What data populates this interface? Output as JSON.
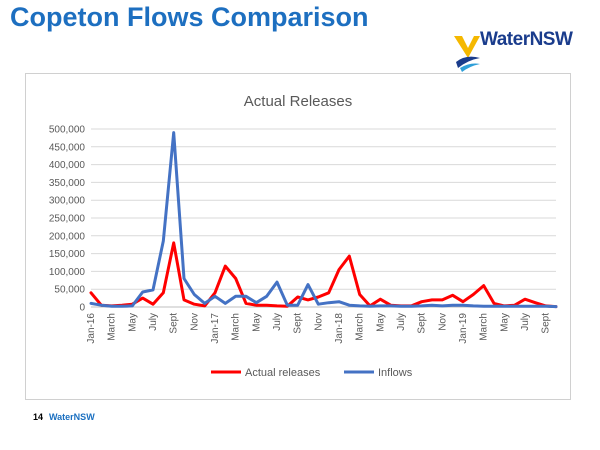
{
  "slide": {
    "title": "Copeton Flows Comparison",
    "logo_text": "WaterNSW",
    "page_number": "14",
    "footer_brand": "WaterNSW"
  },
  "colors": {
    "title": "#1d6fc0",
    "actual": "#ff0000",
    "inflows": "#4472c4",
    "grid": "#d9d9d9",
    "logo_yellow": "#f5b800",
    "logo_blue": "#1a3c8c",
    "logo_light": "#2f9fd8"
  },
  "chart_data": {
    "type": "line",
    "title": "Actual Releases",
    "xlabel": "",
    "ylabel": "",
    "ylim": [
      0,
      500000
    ],
    "yticks": [
      "0",
      "50,000",
      "100,000",
      "150,000",
      "200,000",
      "250,000",
      "300,000",
      "350,000",
      "400,000",
      "450,000",
      "500,000"
    ],
    "grid": true,
    "legend": "bottom",
    "categories": [
      "Jan-16",
      "Feb-16",
      "March",
      "Apr-16",
      "May",
      "Jun-16",
      "July",
      "Aug-16",
      "Sept",
      "Oct-16",
      "Nov",
      "Dec-16",
      "Jan-17",
      "Feb-17",
      "March",
      "Apr-17",
      "May",
      "Jun-17",
      "July",
      "Aug-17",
      "Sept",
      "Oct-17",
      "Nov",
      "Dec-17",
      "Jan-18",
      "Feb-18",
      "March",
      "Apr-18",
      "May",
      "Jun-18",
      "July",
      "Aug-18",
      "Sept",
      "Oct-18",
      "Nov",
      "Dec-18",
      "Jan-19",
      "Feb-19",
      "March",
      "Apr-19",
      "May",
      "Jun-19",
      "July",
      "Aug-19",
      "Sept",
      "Oct-19"
    ],
    "tick_labels": [
      "Jan-16",
      "March",
      "May",
      "July",
      "Sept",
      "Nov",
      "Jan-17",
      "March",
      "May",
      "July",
      "Sept",
      "Nov",
      "Jan-18",
      "March",
      "May",
      "July",
      "Sept",
      "Nov",
      "Jan-19",
      "March",
      "May",
      "July",
      "Sept"
    ],
    "series": [
      {
        "name": "Actual releases",
        "color": "#ff0000",
        "values": [
          40000,
          5000,
          3000,
          5000,
          8000,
          25000,
          8000,
          40000,
          180000,
          20000,
          8000,
          3000,
          40000,
          115000,
          80000,
          10000,
          5000,
          5000,
          3000,
          2000,
          28000,
          20000,
          28000,
          40000,
          105000,
          143000,
          35000,
          3000,
          22000,
          5000,
          3000,
          3000,
          15000,
          20000,
          20000,
          33000,
          15000,
          35000,
          60000,
          10000,
          3000,
          5000,
          22000,
          12000,
          3000,
          1000
        ]
      },
      {
        "name": "Inflows",
        "color": "#4472c4",
        "values": [
          10000,
          5000,
          2000,
          2000,
          3000,
          42000,
          48000,
          185000,
          490000,
          80000,
          35000,
          10000,
          30000,
          10000,
          30000,
          30000,
          12000,
          30000,
          70000,
          5000,
          5000,
          63000,
          8000,
          12000,
          15000,
          5000,
          3000,
          2000,
          3000,
          3000,
          2000,
          2000,
          3000,
          5000,
          3000,
          5000,
          5000,
          3000,
          2000,
          2000,
          2000,
          2000,
          2000,
          2000,
          2000,
          1000
        ]
      }
    ]
  }
}
